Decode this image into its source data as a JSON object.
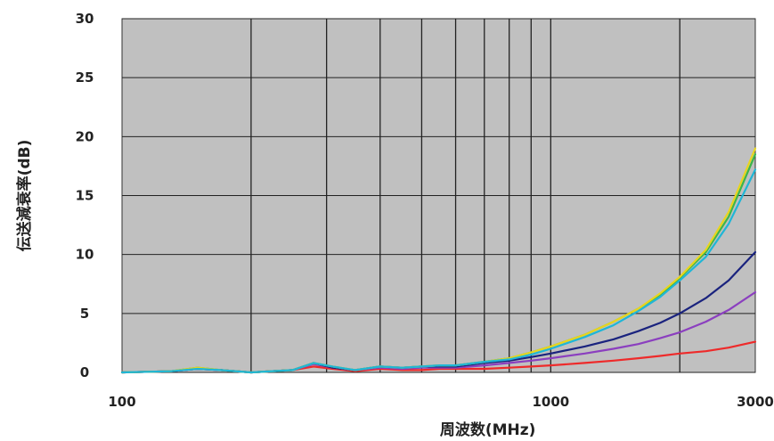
{
  "chart_data": {
    "type": "line",
    "xlabel": "周波数(MHz)",
    "ylabel": "伝送減衰率(dB)",
    "xscale": "log",
    "xlim": [
      100,
      3000
    ],
    "ylim": [
      0,
      30
    ],
    "x_tick_labels": [
      "100",
      "1000",
      "3000"
    ],
    "y_tick_labels": [
      "0",
      "5",
      "10",
      "15",
      "20",
      "25",
      "30"
    ],
    "y_ticks": [
      0,
      5,
      10,
      15,
      20,
      25,
      30
    ],
    "x_gridlines": [
      200,
      300,
      400,
      500,
      600,
      700,
      800,
      900,
      1000,
      2000
    ],
    "grid": true,
    "plot_background": "#c0c0c0",
    "series": [
      {
        "color": "#ee2a2a",
        "points": [
          [
            100,
            0.0
          ],
          [
            130,
            0.1
          ],
          [
            150,
            0.3
          ],
          [
            170,
            0.2
          ],
          [
            200,
            0.0
          ],
          [
            250,
            0.2
          ],
          [
            280,
            0.5
          ],
          [
            310,
            0.3
          ],
          [
            350,
            0.1
          ],
          [
            400,
            0.3
          ],
          [
            450,
            0.2
          ],
          [
            500,
            0.2
          ],
          [
            550,
            0.3
          ],
          [
            600,
            0.3
          ],
          [
            700,
            0.3
          ],
          [
            800,
            0.4
          ],
          [
            900,
            0.5
          ],
          [
            1000,
            0.6
          ],
          [
            1200,
            0.8
          ],
          [
            1400,
            1.0
          ],
          [
            1600,
            1.2
          ],
          [
            1800,
            1.4
          ],
          [
            2000,
            1.6
          ],
          [
            2300,
            1.8
          ],
          [
            2600,
            2.1
          ],
          [
            3000,
            2.6
          ]
        ]
      },
      {
        "color": "#8b3fbf",
        "points": [
          [
            100,
            0.0
          ],
          [
            130,
            0.1
          ],
          [
            150,
            0.3
          ],
          [
            170,
            0.2
          ],
          [
            200,
            0.0
          ],
          [
            250,
            0.2
          ],
          [
            280,
            0.7
          ],
          [
            310,
            0.4
          ],
          [
            350,
            0.2
          ],
          [
            400,
            0.4
          ],
          [
            450,
            0.3
          ],
          [
            500,
            0.4
          ],
          [
            550,
            0.4
          ],
          [
            600,
            0.4
          ],
          [
            700,
            0.6
          ],
          [
            800,
            0.8
          ],
          [
            900,
            1.0
          ],
          [
            1000,
            1.2
          ],
          [
            1200,
            1.6
          ],
          [
            1400,
            2.0
          ],
          [
            1600,
            2.4
          ],
          [
            1800,
            2.9
          ],
          [
            2000,
            3.4
          ],
          [
            2300,
            4.3
          ],
          [
            2600,
            5.3
          ],
          [
            3000,
            6.8
          ]
        ]
      },
      {
        "color": "#1a237e",
        "points": [
          [
            100,
            0.0
          ],
          [
            130,
            0.1
          ],
          [
            150,
            0.3
          ],
          [
            170,
            0.2
          ],
          [
            200,
            0.0
          ],
          [
            250,
            0.2
          ],
          [
            280,
            0.8
          ],
          [
            310,
            0.4
          ],
          [
            350,
            0.2
          ],
          [
            400,
            0.5
          ],
          [
            450,
            0.4
          ],
          [
            500,
            0.5
          ],
          [
            550,
            0.5
          ],
          [
            600,
            0.5
          ],
          [
            700,
            0.8
          ],
          [
            800,
            1.0
          ],
          [
            900,
            1.3
          ],
          [
            1000,
            1.6
          ],
          [
            1200,
            2.2
          ],
          [
            1400,
            2.8
          ],
          [
            1600,
            3.5
          ],
          [
            1800,
            4.2
          ],
          [
            2000,
            5.0
          ],
          [
            2300,
            6.3
          ],
          [
            2600,
            7.8
          ],
          [
            3000,
            10.2
          ]
        ]
      },
      {
        "color": "#3cb54a",
        "points": [
          [
            100,
            0.0
          ],
          [
            130,
            0.1
          ],
          [
            150,
            0.4
          ],
          [
            170,
            0.2
          ],
          [
            200,
            0.0
          ],
          [
            250,
            0.2
          ],
          [
            280,
            0.8
          ],
          [
            310,
            0.5
          ],
          [
            350,
            0.2
          ],
          [
            400,
            0.5
          ],
          [
            450,
            0.4
          ],
          [
            500,
            0.5
          ],
          [
            550,
            0.6
          ],
          [
            600,
            0.6
          ],
          [
            700,
            0.9
          ],
          [
            800,
            1.2
          ],
          [
            900,
            1.7
          ],
          [
            1000,
            2.2
          ],
          [
            1200,
            3.2
          ],
          [
            1400,
            4.3
          ],
          [
            1600,
            5.4
          ],
          [
            1800,
            6.6
          ],
          [
            2000,
            8.0
          ],
          [
            2300,
            10.2
          ],
          [
            2600,
            13.2
          ],
          [
            3000,
            18.5
          ]
        ]
      },
      {
        "color": "#e8d51e",
        "points": [
          [
            100,
            0.0
          ],
          [
            130,
            0.1
          ],
          [
            150,
            0.4
          ],
          [
            170,
            0.2
          ],
          [
            200,
            0.0
          ],
          [
            250,
            0.2
          ],
          [
            280,
            0.8
          ],
          [
            310,
            0.5
          ],
          [
            350,
            0.2
          ],
          [
            400,
            0.5
          ],
          [
            450,
            0.4
          ],
          [
            500,
            0.5
          ],
          [
            550,
            0.6
          ],
          [
            600,
            0.6
          ],
          [
            700,
            0.9
          ],
          [
            800,
            1.2
          ],
          [
            900,
            1.7
          ],
          [
            1000,
            2.2
          ],
          [
            1200,
            3.2
          ],
          [
            1400,
            4.3
          ],
          [
            1600,
            5.4
          ],
          [
            1800,
            6.7
          ],
          [
            2000,
            8.1
          ],
          [
            2300,
            10.4
          ],
          [
            2600,
            13.6
          ],
          [
            3000,
            19.0
          ]
        ]
      },
      {
        "color": "#1fb6d6",
        "points": [
          [
            100,
            0.0
          ],
          [
            130,
            0.1
          ],
          [
            150,
            0.3
          ],
          [
            170,
            0.2
          ],
          [
            200,
            0.0
          ],
          [
            250,
            0.2
          ],
          [
            280,
            0.8
          ],
          [
            310,
            0.5
          ],
          [
            350,
            0.2
          ],
          [
            400,
            0.5
          ],
          [
            450,
            0.4
          ],
          [
            500,
            0.5
          ],
          [
            550,
            0.6
          ],
          [
            600,
            0.6
          ],
          [
            700,
            0.9
          ],
          [
            800,
            1.1
          ],
          [
            900,
            1.5
          ],
          [
            1000,
            2.0
          ],
          [
            1200,
            3.0
          ],
          [
            1400,
            4.0
          ],
          [
            1600,
            5.2
          ],
          [
            1800,
            6.4
          ],
          [
            2000,
            7.8
          ],
          [
            2300,
            9.8
          ],
          [
            2600,
            12.6
          ],
          [
            3000,
            17.2
          ]
        ]
      }
    ]
  }
}
